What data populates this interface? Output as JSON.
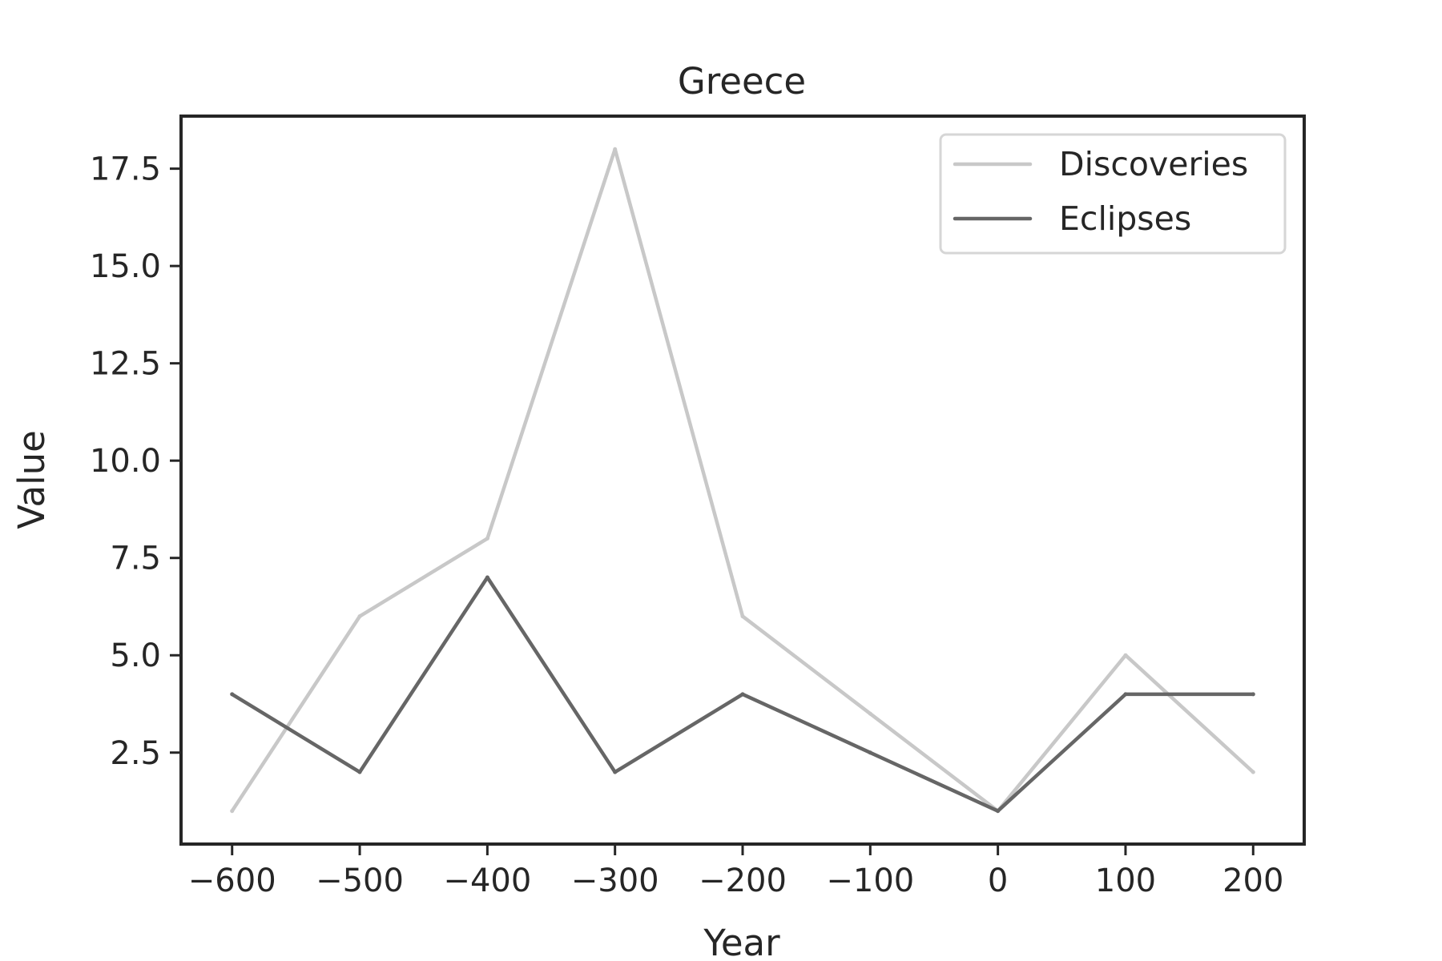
{
  "chart_data": {
    "type": "line",
    "title": "Greece",
    "xlabel": "Year",
    "ylabel": "Value",
    "x": [
      -600,
      -500,
      -400,
      -300,
      -200,
      -100,
      0,
      100,
      200
    ],
    "series": [
      {
        "name": "Discoveries",
        "values": [
          1,
          6,
          8,
          18,
          6,
          3.5,
          1,
          5,
          2
        ],
        "color": "#c8c8c8"
      },
      {
        "name": "Eclipses",
        "values": [
          4,
          2,
          7,
          2,
          4,
          2.5,
          1,
          4,
          4
        ],
        "color": "#666666"
      }
    ],
    "xticks": [
      -600,
      -500,
      -400,
      -300,
      -200,
      -100,
      0,
      100,
      200
    ],
    "xtick_labels": [
      "−600",
      "−500",
      "−400",
      "−300",
      "−200",
      "−100",
      "0",
      "100",
      "200"
    ],
    "yticks": [
      2.5,
      5.0,
      7.5,
      10.0,
      12.5,
      15.0,
      17.5
    ],
    "ytick_labels": [
      "2.5",
      "5.0",
      "7.5",
      "10.0",
      "12.5",
      "15.0",
      "17.5"
    ],
    "xlim": [
      -640,
      240
    ],
    "ylim": [
      0.15,
      18.85
    ],
    "grid": false,
    "legend_position": "upper right"
  }
}
